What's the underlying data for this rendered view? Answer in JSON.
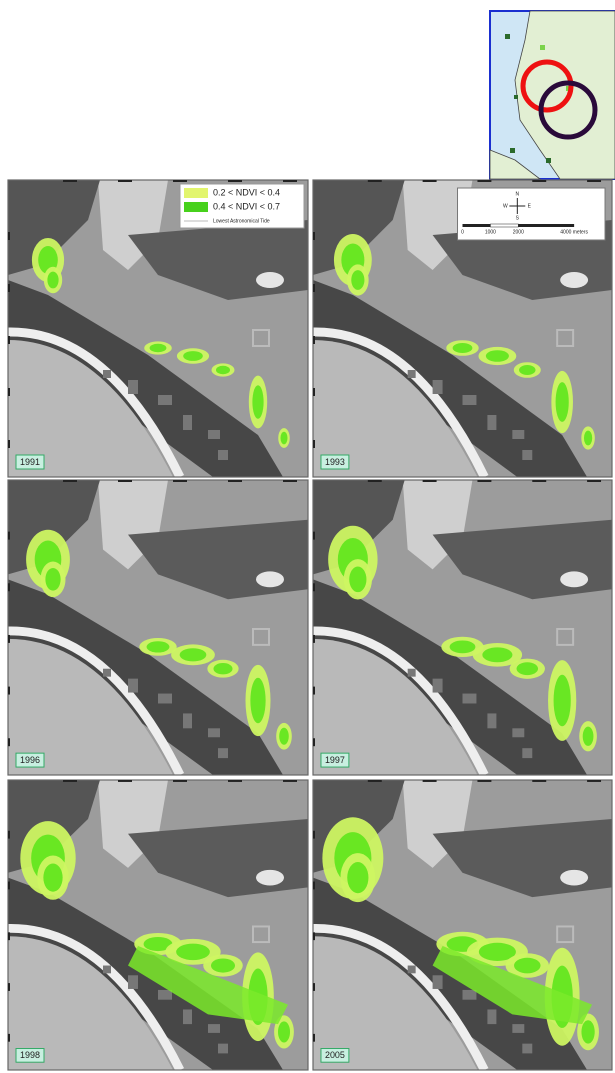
{
  "legend": {
    "items": [
      "0.2 < NDVI < 0.4",
      "0.4 < NDVI < 0.7",
      "Lowest Astronomical Tide"
    ]
  },
  "scale_bar": {
    "labels": [
      "0",
      "1000",
      "2000",
      "4000 meters"
    ]
  },
  "compass": {
    "labels": [
      "N",
      "E",
      "S",
      "W"
    ]
  },
  "panels": [
    {
      "year": "1991"
    },
    {
      "year": "1993"
    },
    {
      "year": "1996"
    },
    {
      "year": "1997"
    },
    {
      "year": "1998"
    },
    {
      "year": "2005"
    }
  ]
}
